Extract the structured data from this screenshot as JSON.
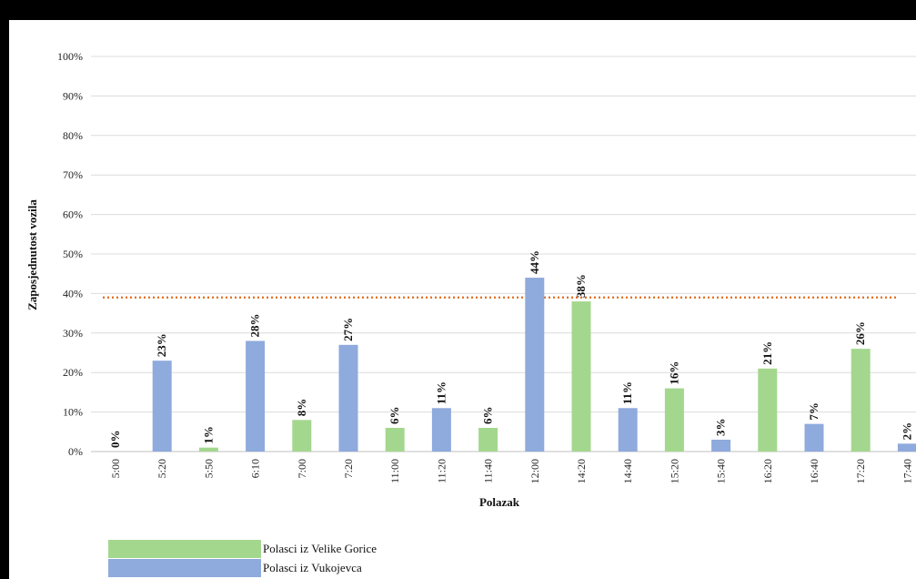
{
  "chart_data": {
    "type": "bar",
    "xlabel": "Polazak",
    "ylabel": "Zaposjednutost vozila",
    "ylim": [
      0,
      100
    ],
    "yticks": [
      "0%",
      "10%",
      "20%",
      "30%",
      "40%",
      "50%",
      "60%",
      "70%",
      "80%",
      "90%",
      "100%"
    ],
    "grid": true,
    "categories": [
      "5:00",
      "5:20",
      "5:50",
      "6:10",
      "7:00",
      "7:20",
      "11:00",
      "11:20",
      "11:40",
      "12:00",
      "14:20",
      "14:40",
      "15:20",
      "15:40",
      "16:20",
      "16:40",
      "17:20",
      "17:40"
    ],
    "values": [
      0,
      23,
      1,
      28,
      8,
      27,
      6,
      11,
      6,
      44,
      38,
      11,
      16,
      3,
      21,
      7,
      26,
      2
    ],
    "value_labels": [
      "0%",
      "23%",
      "1%",
      "28%",
      "8%",
      "27%",
      "6%",
      "11%",
      "6%",
      "44%",
      "38%",
      "11%",
      "16%",
      "3%",
      "21%",
      "7%",
      "26%",
      "2%"
    ],
    "bar_series": [
      "Polasci iz Vukojevca",
      "Polasci iz Vukojevca",
      "Polasci iz Velike Gorice",
      "Polasci iz Vukojevca",
      "Polasci iz Velike Gorice",
      "Polasci iz Vukojevca",
      "Polasci iz Velike Gorice",
      "Polasci iz Vukojevca",
      "Polasci iz Velike Gorice",
      "Polasci iz Vukojevca",
      "Polasci iz Velike Gorice",
      "Polasci iz Vukojevca",
      "Polasci iz Velike Gorice",
      "Polasci iz Vukojevca",
      "Polasci iz Velike Gorice",
      "Polasci iz Vukojevca",
      "Polasci iz Velike Gorice",
      "Polasci iz Vukojevca"
    ],
    "reference_line": {
      "value": 39,
      "color": "#E06A1B",
      "style": "dotted"
    },
    "legend": {
      "position": "bottom-left",
      "entries": [
        {
          "name": "Polasci iz Velike Gorice",
          "color": "#A4D78E"
        },
        {
          "name": "Polasci iz Vukojevca",
          "color": "#8FAADC"
        }
      ]
    },
    "colors": {
      "Polasci iz Velike Gorice": "#A4D78E",
      "Polasci iz Vukojevca": "#8FAADC"
    }
  }
}
